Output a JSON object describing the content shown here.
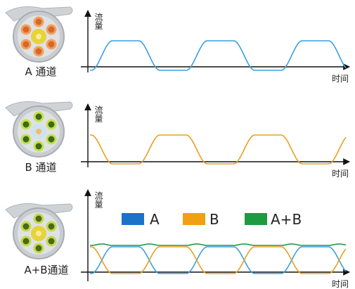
{
  "panels": [
    {
      "label": "A 通道",
      "y_label": "流量",
      "x_label": "时间"
    },
    {
      "label": "B 通道",
      "y_label": "流量",
      "x_label": "时间"
    },
    {
      "label": "A+B通道",
      "y_label": "流量",
      "x_label": "时间"
    }
  ],
  "legend": [
    "A",
    "B",
    "A+B"
  ]
}
